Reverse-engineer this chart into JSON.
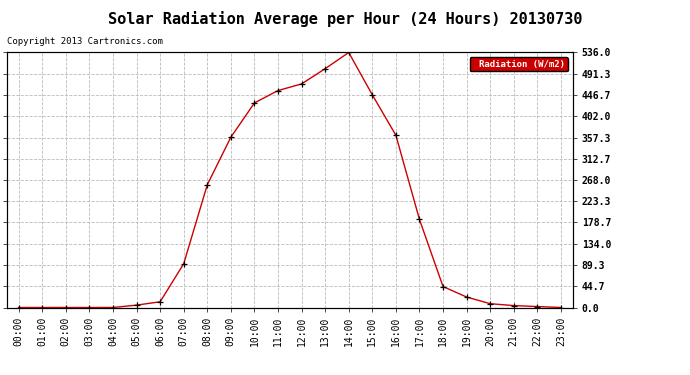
{
  "title": "Solar Radiation Average per Hour (24 Hours) 20130730",
  "copyright": "Copyright 2013 Cartronics.com",
  "legend_label": "Radiation (W/m2)",
  "hours": [
    "00:00",
    "01:00",
    "02:00",
    "03:00",
    "04:00",
    "05:00",
    "06:00",
    "07:00",
    "08:00",
    "09:00",
    "10:00",
    "11:00",
    "12:00",
    "13:00",
    "14:00",
    "15:00",
    "16:00",
    "17:00",
    "18:00",
    "19:00",
    "20:00",
    "21:00",
    "22:00",
    "23:00"
  ],
  "values": [
    0.0,
    0.0,
    0.0,
    0.0,
    0.0,
    5.0,
    12.0,
    92.0,
    258.0,
    358.0,
    430.0,
    456.0,
    470.0,
    502.0,
    536.0,
    447.0,
    362.0,
    185.0,
    44.0,
    22.0,
    8.0,
    4.0,
    2.0,
    0.0
  ],
  "yticks": [
    0.0,
    44.7,
    89.3,
    134.0,
    178.7,
    223.3,
    268.0,
    312.7,
    357.3,
    402.0,
    446.7,
    491.3,
    536.0
  ],
  "ymax": 536.0,
  "line_color": "#cc0000",
  "marker_color": "#000000",
  "bg_color": "#ffffff",
  "grid_color": "#bbbbbb",
  "legend_bg": "#cc0000",
  "legend_text_color": "#ffffff",
  "title_fontsize": 11,
  "copyright_fontsize": 6.5,
  "tick_fontsize": 7,
  "figwidth": 6.9,
  "figheight": 3.75,
  "dpi": 100
}
